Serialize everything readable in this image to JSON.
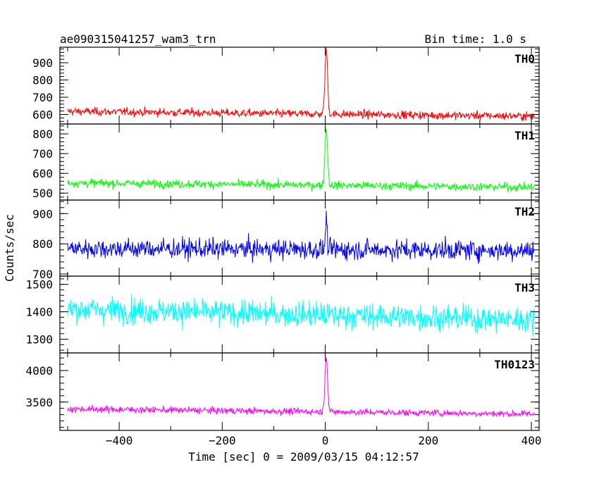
{
  "chart_data": {
    "type": "line",
    "title": "ae090315041257_wam3_trn",
    "bin_time": "Bin time: 1.0 s",
    "xlabel": "Time [sec] 0 = 2009/03/15 04:12:57",
    "ylabel": "Counts/sec",
    "xlim": [
      -515,
      415
    ],
    "x_ticks": [
      -400,
      -200,
      0,
      200,
      400
    ],
    "x_tick_labels": [
      "−400",
      "−200",
      "0",
      "200",
      "400"
    ],
    "x_range_data": [
      -500,
      406
    ],
    "panels": [
      {
        "name": "TH0",
        "color": "#ff0000",
        "ylim": [
          545,
          990
        ],
        "ticks": [
          600,
          700,
          800,
          900
        ],
        "tick_labels": [
          "600",
          "700",
          "800",
          "900"
        ],
        "baseline_start": 618,
        "baseline_end": 590,
        "noise": 20,
        "peak": 380,
        "peak_width": 2.5
      },
      {
        "name": "TH1",
        "color": "#00ff00",
        "ylim": [
          465,
          850
        ],
        "ticks": [
          500,
          600,
          700,
          800
        ],
        "tick_labels": [
          "500",
          "600",
          "700",
          "800"
        ],
        "baseline_start": 552,
        "baseline_end": 530,
        "noise": 18,
        "peak": 290,
        "peak_width": 2.5
      },
      {
        "name": "TH2",
        "color": "#0000ff",
        "ylim": [
          693,
          945
        ],
        "ticks": [
          700,
          800,
          900
        ],
        "tick_labels": [
          "700",
          "800",
          "900"
        ],
        "baseline_start": 785,
        "baseline_end": 778,
        "noise": 28,
        "peak": 110,
        "peak_width": 1.5
      },
      {
        "name": "TH3",
        "color": "#00ffff",
        "ylim": [
          1250,
          1530
        ],
        "ticks": [
          1300,
          1400,
          1500
        ],
        "tick_labels": [
          "1300",
          "1400",
          "1500"
        ],
        "baseline_start": 1410,
        "baseline_end": 1370,
        "noise": 40,
        "peak": 0,
        "peak_width": 1.5
      },
      {
        "name": "TH0123",
        "color": "#ff00ff",
        "ylim": [
          3050,
          4280
        ],
        "ticks": [
          3500,
          4000
        ],
        "tick_labels": [
          "3500",
          "4000"
        ],
        "baseline_start": 3390,
        "baseline_end": 3310,
        "noise": 45,
        "peak": 900,
        "peak_width": 2.5
      }
    ]
  }
}
